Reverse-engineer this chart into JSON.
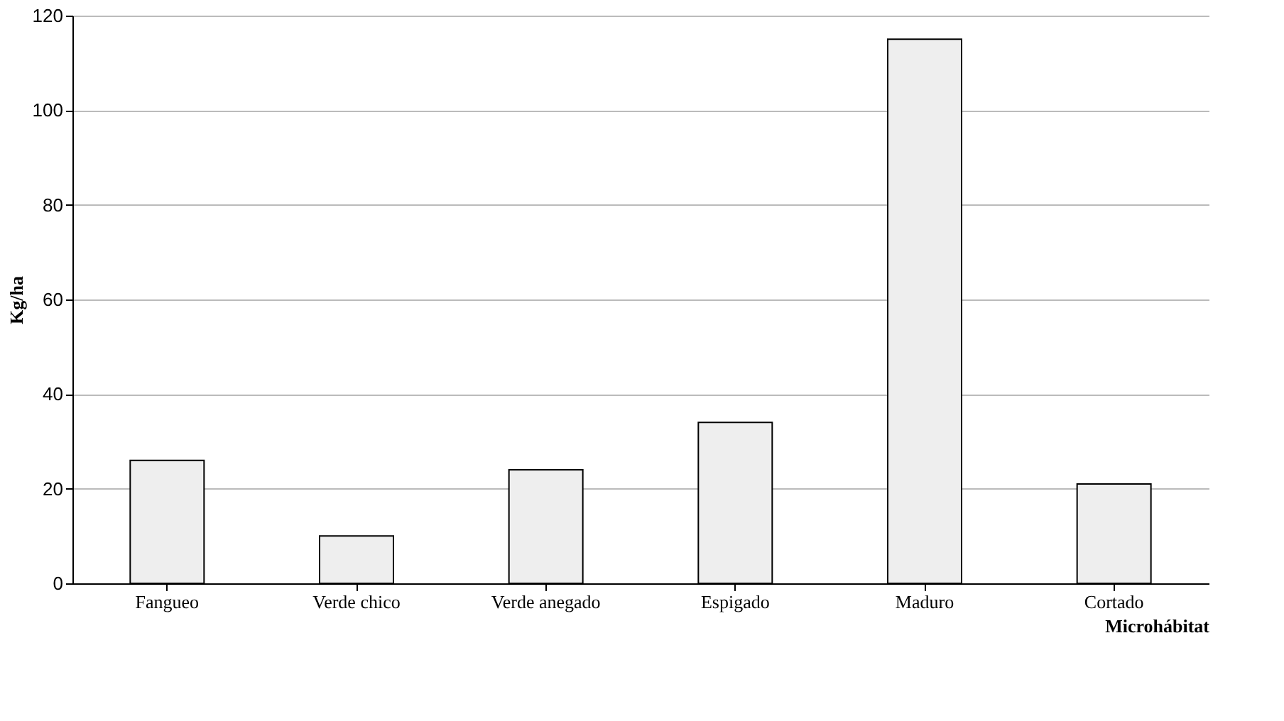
{
  "chart_data": {
    "type": "bar",
    "xlabel": "Microhábitat",
    "ylabel": "Kg/ha",
    "categories": [
      "Fangueo",
      "Verde chico",
      "Verde anegado",
      "Espigado",
      "Maduro",
      "Cortado"
    ],
    "values": [
      26,
      10,
      24,
      34,
      115,
      21
    ],
    "color": "#eeeeee",
    "ylim": [
      0,
      120
    ],
    "yticks": [
      0,
      20,
      40,
      60,
      80,
      100,
      120
    ],
    "grid": "y"
  }
}
